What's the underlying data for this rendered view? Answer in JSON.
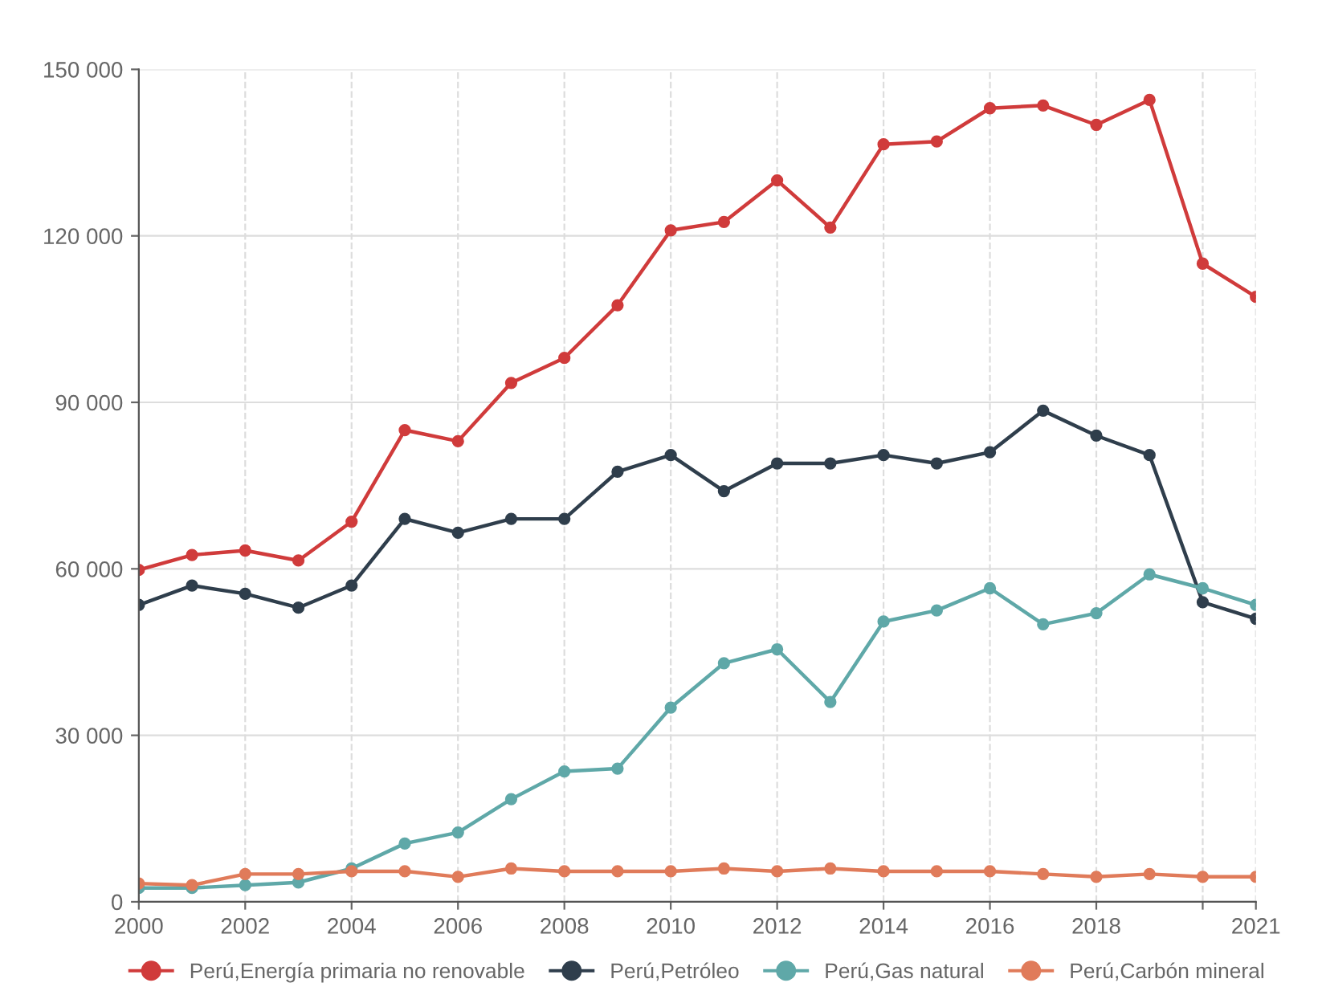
{
  "chart_data": {
    "type": "line",
    "x": [
      2000,
      2001,
      2002,
      2003,
      2004,
      2005,
      2006,
      2007,
      2008,
      2009,
      2010,
      2011,
      2012,
      2013,
      2014,
      2015,
      2016,
      2017,
      2018,
      2019,
      2020,
      2021
    ],
    "series": [
      {
        "name": "Perú,Energía primaria no renovable",
        "color": "#d03b3b",
        "values": [
          59800,
          62500,
          63300,
          61500,
          68500,
          85000,
          83000,
          93500,
          98000,
          107500,
          121000,
          122500,
          130000,
          121500,
          136500,
          137000,
          143000,
          143500,
          140000,
          144500,
          115000,
          109000
        ]
      },
      {
        "name": "Perú,Petróleo",
        "color": "#2f3e4c",
        "values": [
          53500,
          57000,
          55500,
          53000,
          57000,
          69000,
          66500,
          69000,
          69000,
          77500,
          80500,
          74000,
          79000,
          79000,
          80500,
          79000,
          81000,
          88500,
          84000,
          80500,
          54000,
          51000
        ]
      },
      {
        "name": "Perú,Gas natural",
        "color": "#5fa8a8",
        "values": [
          2500,
          2500,
          3000,
          3500,
          6000,
          10500,
          12500,
          18500,
          23500,
          24000,
          35000,
          43000,
          45500,
          36000,
          50500,
          52500,
          56500,
          50000,
          52000,
          59000,
          56500,
          53500
        ]
      },
      {
        "name": "Perú,Carbón mineral",
        "color": "#e07b5a",
        "values": [
          3300,
          3000,
          5000,
          5000,
          5500,
          5500,
          4500,
          6000,
          5500,
          5500,
          5500,
          6000,
          5500,
          6000,
          5500,
          5500,
          5500,
          5000,
          4500,
          5000,
          4500,
          4500
        ]
      }
    ],
    "xlim": [
      2000,
      2021
    ],
    "xticks": [
      2000,
      2002,
      2004,
      2006,
      2008,
      2010,
      2012,
      2014,
      2016,
      2018,
      {
        "value": 2020,
        "label": null
      },
      2021
    ],
    "ylim": [
      0,
      150000
    ],
    "yticks": [
      {
        "value": 0,
        "label": "0"
      },
      {
        "value": 30000,
        "label": "30 000"
      },
      {
        "value": 60000,
        "label": "60 000"
      },
      {
        "value": 90000,
        "label": "90 000"
      },
      {
        "value": 120000,
        "label": "120 000"
      },
      {
        "value": 150000,
        "label": "150 000"
      }
    ],
    "grid": true,
    "legend": "bottom",
    "marker": "circle",
    "line_style": "solid"
  }
}
